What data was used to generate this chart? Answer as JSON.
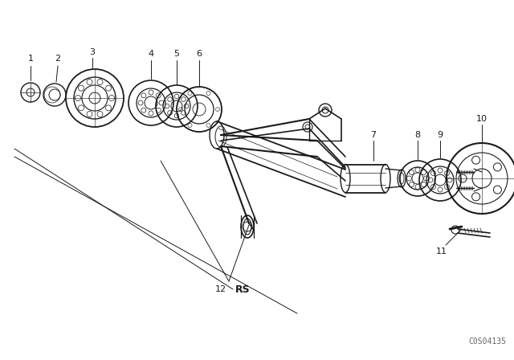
{
  "bg_color": "#ffffff",
  "line_color": "#1a1a1a",
  "fig_width": 6.4,
  "fig_height": 4.48,
  "dpi": 100,
  "watermark": "C0S04135",
  "watermark_fontsize": 7
}
